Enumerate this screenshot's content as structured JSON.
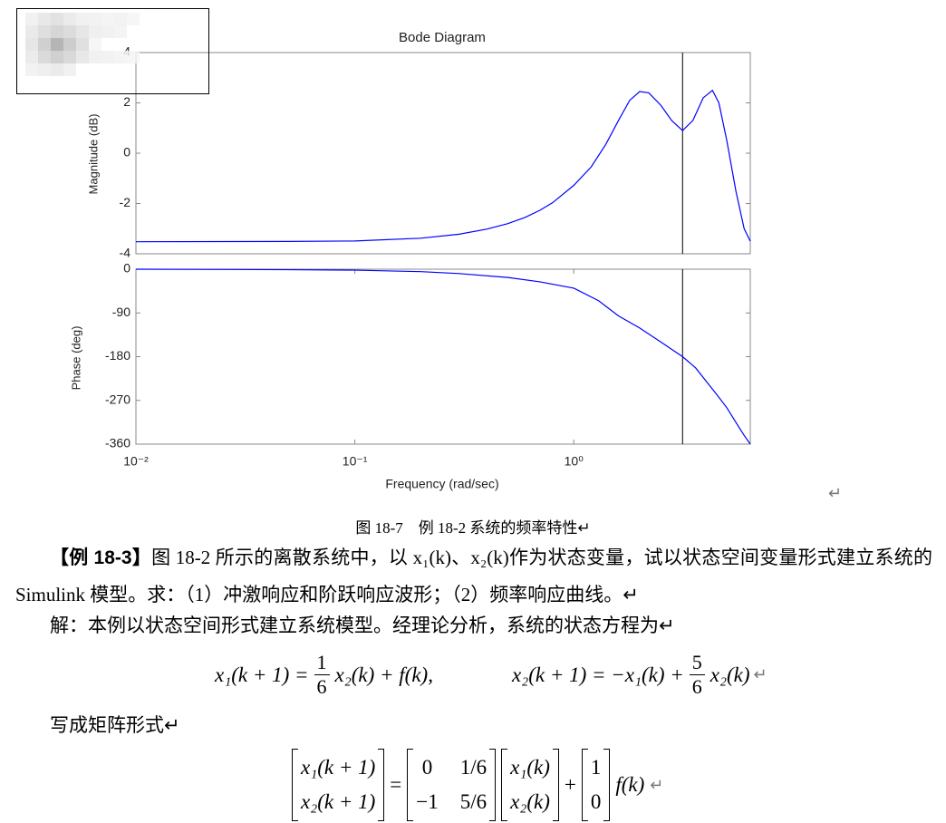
{
  "chart_data": [
    {
      "type": "line",
      "title": "Bode Diagram",
      "ylabel": "Magnitude (dB)",
      "color": "#0000ff",
      "log_x": true,
      "x": [
        0.01,
        0.05,
        0.1,
        0.2,
        0.3,
        0.4,
        0.5,
        0.6,
        0.7,
        0.8,
        1.0,
        1.2,
        1.4,
        1.6,
        1.8,
        2.0,
        2.2,
        2.5,
        2.8,
        3.14,
        3.5,
        3.9,
        4.3,
        4.6,
        5.0,
        5.5,
        6.0,
        6.4
      ],
      "values": [
        -3.52,
        -3.51,
        -3.49,
        -3.38,
        -3.22,
        -3.02,
        -2.8,
        -2.55,
        -2.27,
        -1.97,
        -1.28,
        -0.55,
        0.35,
        1.3,
        2.1,
        2.45,
        2.4,
        1.9,
        1.3,
        0.9,
        1.3,
        2.2,
        2.5,
        2.0,
        0.5,
        -1.5,
        -3.0,
        -3.5
      ],
      "xlim": [
        0.01,
        6.4
      ],
      "ylim": [
        -4,
        4
      ],
      "yticks": [
        4,
        2,
        0,
        -2,
        -4
      ],
      "vline": 3.14
    },
    {
      "type": "line",
      "ylabel": "Phase (deg)",
      "xlabel": "Frequency  (rad/sec)",
      "color": "#0000ff",
      "log_x": true,
      "x": [
        0.01,
        0.05,
        0.1,
        0.2,
        0.3,
        0.5,
        0.7,
        1.0,
        1.3,
        1.6,
        2.0,
        2.5,
        3.14,
        3.6,
        4.0,
        4.5,
        5.0,
        5.5,
        6.0,
        6.4
      ],
      "values": [
        0,
        -1,
        -2,
        -5,
        -9,
        -17,
        -26,
        -39,
        -65,
        -96,
        -121,
        -150,
        -180,
        -203,
        -229,
        -258,
        -285,
        -315,
        -342,
        -360
      ],
      "xlim": [
        0.01,
        6.4
      ],
      "ylim": [
        -360,
        0
      ],
      "yticks": [
        0,
        -90,
        -180,
        -270,
        -360
      ],
      "xticks": [
        {
          "value": 0.01,
          "label": "10⁻²"
        },
        {
          "value": 0.1,
          "label": "10⁻¹"
        },
        {
          "value": 1,
          "label": "10⁰"
        }
      ],
      "vline": 3.14
    }
  ],
  "return_mark": "↵",
  "caption": "图 18-7　例 18-2 系统的频率特性↵",
  "example": {
    "label": "【例 18-3】",
    "text": "图 18-2 所示的离散系统中，以 x₁(k)、x₂(k)作为状态变量，试以状态空间变量形式建立系统的 Simulink 模型。求：（1）冲激响应和阶跃响应波形；（2）频率响应曲线。↵"
  },
  "solution": "解：本例以状态空间形式建立系统模型。经理论分析，系统的状态方程为↵",
  "equation1": {
    "lhs1": "x₁(k + 1) =",
    "frac1": {
      "num": "1",
      "den": "6"
    },
    "rhs1": "x₂(k) + f(k),",
    "lhs2": "x₂(k + 1) = −x₁(k) +",
    "frac2": {
      "num": "5",
      "den": "6"
    },
    "rhs2": "x₂(k)",
    "tail": "↵"
  },
  "matrix_intro": "写成矩阵形式↵",
  "equation2": {
    "lhs": [
      "x₁(k + 1)",
      "x₂(k + 1)"
    ],
    "eq": "=",
    "A": [
      [
        "0",
        "1/6"
      ],
      [
        "−1",
        "5/6"
      ]
    ],
    "state": [
      "x₁(k)",
      "x₂(k)"
    ],
    "plus": "+",
    "B": [
      "1",
      "0"
    ],
    "input": "f(k)",
    "tail": "↵"
  }
}
